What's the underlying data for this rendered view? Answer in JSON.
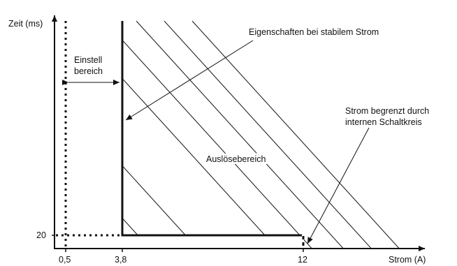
{
  "axes": {
    "y_label": "Zeit (ms)",
    "x_label": "Strom (A)",
    "y_tick": "20",
    "x_ticks": [
      "0,5",
      "3,8",
      "12"
    ]
  },
  "annotations": {
    "einstell_line1": "Einstell",
    "einstell_line2": "bereich",
    "stable_current": "Eigenschaften bei stabilem Strom",
    "limited_line1": "Strom begrenzt durch",
    "limited_line2": "internen Schaltkreis",
    "trip_region": "Auslösebereich"
  },
  "colors": {
    "line": "#111111"
  }
}
